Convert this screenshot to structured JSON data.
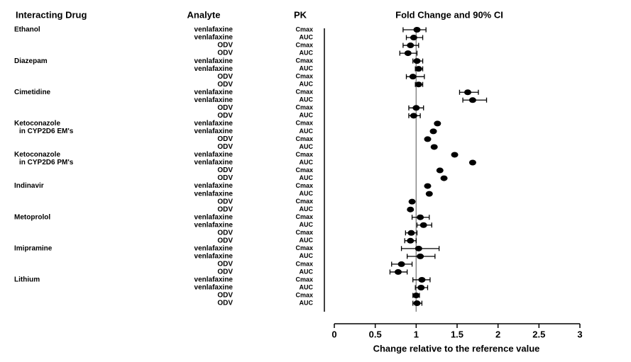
{
  "chart_data": {
    "type": "forest",
    "column_headers": [
      "Interacting Drug",
      "Analyte",
      "PK",
      "Fold Change and 90% CI"
    ],
    "drug": [
      "Ethanol",
      null,
      null,
      null,
      "Diazepam",
      null,
      null,
      null,
      "Cimetidine",
      null,
      null,
      null,
      "Ketoconazole",
      "in CYP2D6 EM's",
      null,
      null,
      "Ketoconazole",
      "in CYP2D6 PM's",
      null,
      null,
      "Indinavir",
      null,
      null,
      null,
      "Metoprolol",
      null,
      null,
      null,
      "Imipramine",
      null,
      null,
      null,
      "Lithium",
      null,
      null,
      null
    ],
    "analyte": [
      "venlafaxine",
      "venlafaxine",
      "ODV",
      "ODV",
      "venlafaxine",
      "venlafaxine",
      "ODV",
      "ODV",
      "venlafaxine",
      "venlafaxine",
      "ODV",
      "ODV",
      "venlafaxine",
      "venlafaxine",
      "ODV",
      "ODV",
      "venlafaxine",
      "venlafaxine",
      "ODV",
      "ODV",
      "venlafaxine",
      "venlafaxine",
      "ODV",
      "ODV",
      "venlafaxine",
      "venlafaxine",
      "ODV",
      "ODV",
      "venlafaxine",
      "venlafaxine",
      "ODV",
      "ODV",
      "venlafaxine",
      "venlafaxine",
      "ODV",
      "ODV"
    ],
    "pk": [
      "Cmax",
      "AUC",
      "Cmax",
      "AUC",
      "Cmax",
      "AUC",
      "Cmax",
      "AUC",
      "Cmax",
      "AUC",
      "Cmax",
      "AUC",
      "Cmax",
      "AUC",
      "Cmax",
      "AUC",
      "Cmax",
      "AUC",
      "Cmax",
      "AUC",
      "Cmax",
      "AUC",
      "Cmax",
      "AUC",
      "Cmax",
      "AUC",
      "Cmax",
      "AUC",
      "Cmax",
      "AUC",
      "Cmax",
      "AUC",
      "Cmax",
      "AUC",
      "Cmax",
      "AUC"
    ],
    "values": [
      1.01,
      0.97,
      0.93,
      0.9,
      1.01,
      1.03,
      0.96,
      1.03,
      1.63,
      1.69,
      1.0,
      0.97,
      1.26,
      1.21,
      1.14,
      1.22,
      1.47,
      1.69,
      1.29,
      1.34,
      1.14,
      1.16,
      0.95,
      0.93,
      1.05,
      1.09,
      0.94,
      0.93,
      1.03,
      1.05,
      0.82,
      0.78,
      1.07,
      1.06,
      1.0,
      1.01
    ],
    "ci_lower": [
      0.84,
      0.88,
      0.84,
      0.8,
      0.96,
      0.99,
      0.88,
      0.99,
      1.53,
      1.57,
      0.91,
      0.91,
      null,
      null,
      null,
      null,
      null,
      null,
      null,
      null,
      null,
      null,
      null,
      null,
      0.95,
      1.01,
      0.87,
      0.86,
      0.82,
      0.89,
      0.7,
      0.68,
      0.96,
      0.99,
      0.96,
      0.96
    ],
    "ci_upper": [
      1.12,
      1.08,
      1.03,
      1.01,
      1.08,
      1.08,
      1.1,
      1.08,
      1.76,
      1.86,
      1.09,
      1.05,
      null,
      null,
      null,
      null,
      null,
      null,
      null,
      null,
      null,
      null,
      null,
      null,
      1.16,
      1.19,
      1.01,
      1.0,
      1.28,
      1.23,
      0.95,
      0.89,
      1.17,
      1.14,
      1.04,
      1.07
    ],
    "reference_line": 1,
    "xlabel": "Change relative to the reference value",
    "xlim": [
      0,
      3
    ],
    "xticks": [
      0,
      0.5,
      1,
      1.5,
      2,
      2.5,
      3
    ],
    "color": "#000000"
  }
}
